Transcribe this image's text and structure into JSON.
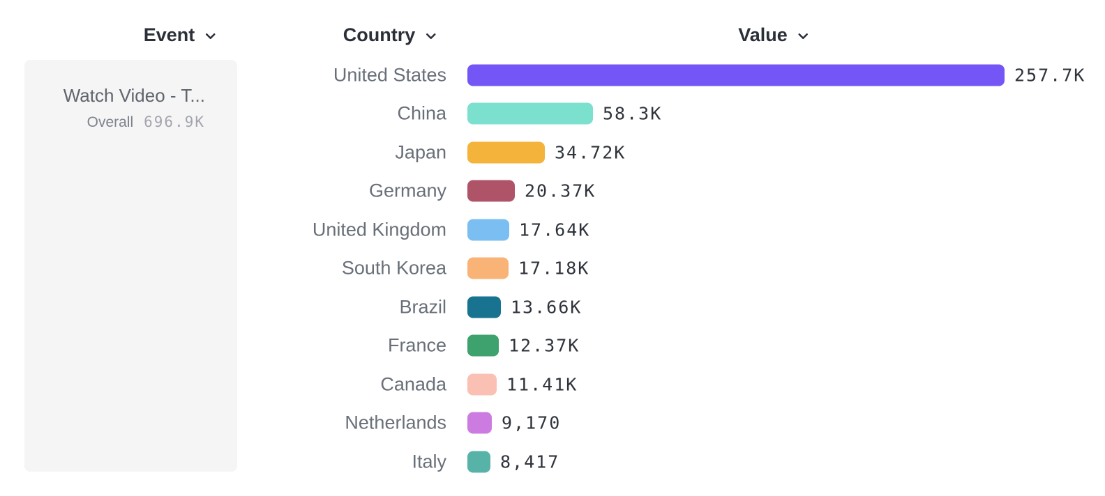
{
  "headers": {
    "event": {
      "label": "Event"
    },
    "country": {
      "label": "Country"
    },
    "value": {
      "label": "Value"
    }
  },
  "event_panel": {
    "title": "Watch Video - T...",
    "overall_label": "Overall",
    "overall_value": "696.9K"
  },
  "chart_data": {
    "type": "bar",
    "orientation": "horizontal",
    "title": "",
    "xlabel": "Value",
    "ylabel": "Country",
    "categories": [
      "United States",
      "China",
      "Japan",
      "Germany",
      "United Kingdom",
      "South Korea",
      "Brazil",
      "France",
      "Canada",
      "Netherlands",
      "Italy"
    ],
    "values": [
      257700,
      58300,
      34720,
      20370,
      17640,
      17180,
      13660,
      12370,
      11410,
      9170,
      8417
    ],
    "value_labels": [
      "257.7K",
      "58.3K",
      "34.72K",
      "20.37K",
      "17.64K",
      "17.18K",
      "13.66K",
      "12.37K",
      "11.41K",
      "9,170",
      "8,417"
    ],
    "bar_colors": [
      "#7455F5",
      "#7CE0CF",
      "#F4B43C",
      "#AF5468",
      "#7BBFF2",
      "#FAB377",
      "#17738F",
      "#3DA26D",
      "#FBC0B4",
      "#CC7CE0",
      "#57B3A8"
    ],
    "xlim": [
      0,
      257700
    ],
    "grid": false,
    "legend": "none"
  },
  "colors": {
    "header_text": "#2b2f38",
    "country_label_text": "#696f78",
    "value_label_text": "#2f333b",
    "event_panel_bg": "#f5f5f6"
  }
}
